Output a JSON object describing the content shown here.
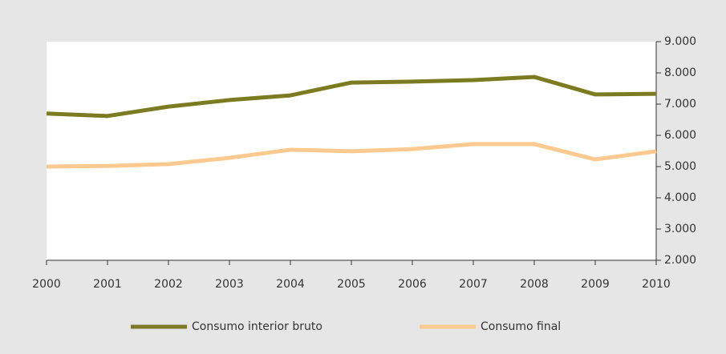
{
  "chart_data": {
    "type": "line",
    "categories": [
      "2000",
      "2001",
      "2002",
      "2003",
      "2004",
      "2005",
      "2006",
      "2007",
      "2008",
      "2009",
      "2010"
    ],
    "series": [
      {
        "name": "Consumo interior bruto",
        "color": "#7d7b22",
        "values": [
          6700,
          6620,
          6920,
          7130,
          7280,
          7690,
          7720,
          7770,
          7870,
          7310,
          7330
        ]
      },
      {
        "name": "Consumo final",
        "color": "#fcca90",
        "values": [
          5000,
          5020,
          5080,
          5280,
          5540,
          5490,
          5560,
          5720,
          5720,
          5230,
          5490
        ]
      }
    ],
    "ylim": [
      2000,
      9000
    ],
    "yticks": [
      {
        "value": 2000,
        "label": "2.000"
      },
      {
        "value": 3000,
        "label": "3.000"
      },
      {
        "value": 4000,
        "label": "4.000"
      },
      {
        "value": 5000,
        "label": "5.000"
      },
      {
        "value": 6000,
        "label": "6.000"
      },
      {
        "value": 7000,
        "label": "7.000"
      },
      {
        "value": 8000,
        "label": "8.000"
      },
      {
        "value": 9000,
        "label": "9.000"
      }
    ],
    "legend": "bottom"
  }
}
